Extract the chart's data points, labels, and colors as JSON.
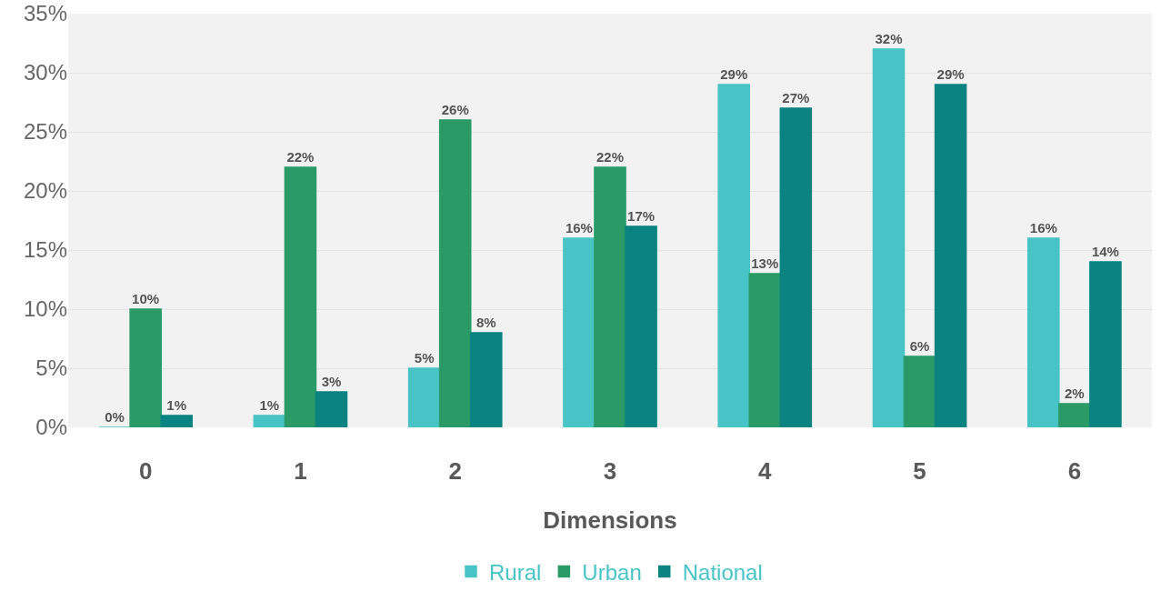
{
  "chart_data": {
    "type": "bar",
    "xlabel": "Dimensions",
    "categories": [
      "0",
      "1",
      "2",
      "3",
      "4",
      "5",
      "6"
    ],
    "series": [
      {
        "name": "Rural",
        "color": "#48c3c6",
        "values": [
          0,
          1,
          5,
          16,
          29,
          32,
          16
        ],
        "value_labels": [
          "0%",
          "1%",
          "5%",
          "16%",
          "29%",
          "32%",
          "16%"
        ]
      },
      {
        "name": "Urban",
        "color": "#2a9a67",
        "values": [
          10,
          22,
          26,
          22,
          13,
          6,
          2
        ],
        "value_labels": [
          "10%",
          "22%",
          "26%",
          "22%",
          "13%",
          "6%",
          "2%"
        ]
      },
      {
        "name": "National",
        "color": "#0b8380",
        "values": [
          1,
          3,
          8,
          17,
          27,
          29,
          14
        ],
        "value_labels": [
          "1%",
          "3%",
          "8%",
          "17%",
          "27%",
          "29%",
          "14%"
        ]
      }
    ],
    "ylim": [
      0,
      35
    ],
    "yticks": [
      {
        "value": 0,
        "label": "0%"
      },
      {
        "value": 5,
        "label": "5%"
      },
      {
        "value": 10,
        "label": "10%"
      },
      {
        "value": 15,
        "label": "15%"
      },
      {
        "value": 20,
        "label": "20%"
      },
      {
        "value": 25,
        "label": "25%"
      },
      {
        "value": 30,
        "label": "30%"
      },
      {
        "value": 35,
        "label": "35%"
      }
    ],
    "grid": "y",
    "legend": "bottom"
  }
}
